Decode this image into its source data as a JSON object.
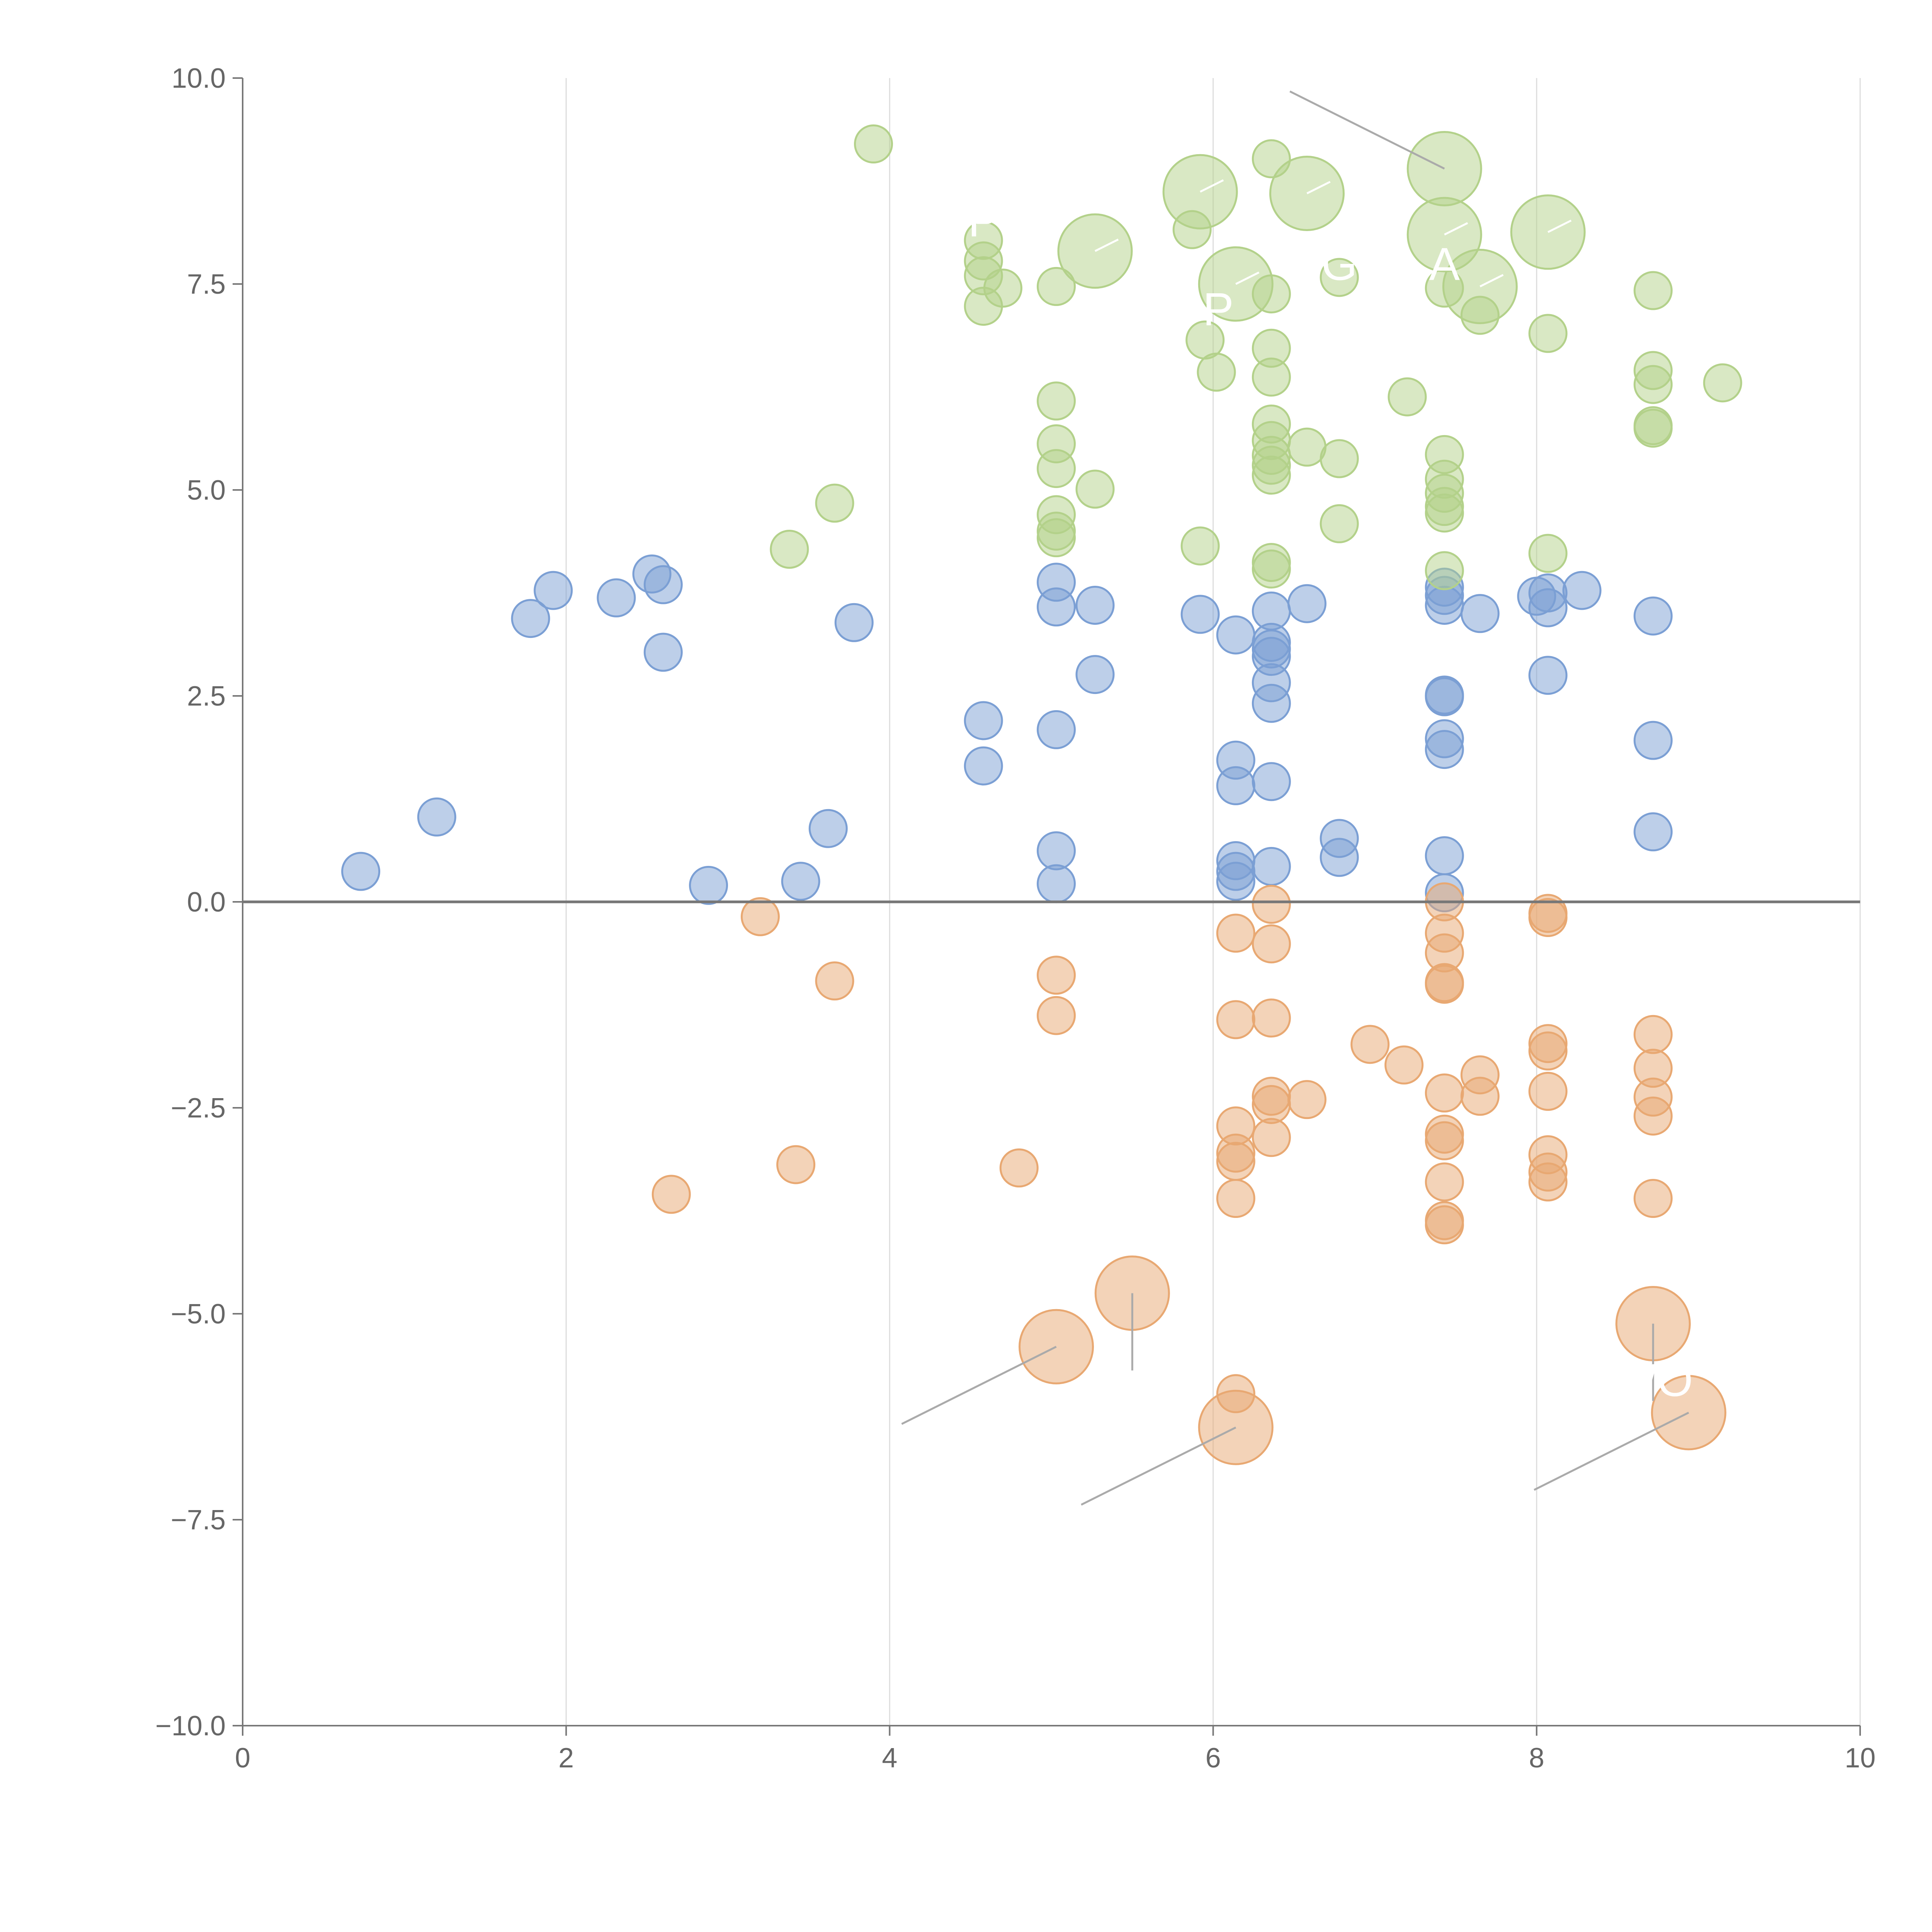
{
  "chart_data": {
    "type": "scatter",
    "title": "",
    "xlabel": "",
    "ylabel": "",
    "xlim": [
      0,
      10
    ],
    "ylim": [
      -10,
      10
    ],
    "xticks": [
      0,
      2,
      4,
      6,
      8,
      10
    ],
    "xtick_labels": [
      "0",
      "2",
      "4",
      "6",
      "8",
      "10"
    ],
    "yticks": [
      -10,
      -7.5,
      -5,
      -2.5,
      0,
      2.5,
      5,
      7.5,
      10
    ],
    "ytick_labels": [
      "−10.0",
      "−7.5",
      "−5.0",
      "−2.5",
      "0.0",
      "2.5",
      "5.0",
      "7.5",
      "10.0"
    ],
    "grid": "vertical",
    "zero_line": true,
    "series": [
      {
        "name": "blue",
        "color": "#7b9fd4",
        "points": [
          [
            0.73,
            0.37
          ],
          [
            1.2,
            1.03
          ],
          [
            1.78,
            3.44
          ],
          [
            1.92,
            3.78
          ],
          [
            2.31,
            3.69
          ],
          [
            2.53,
            3.98
          ],
          [
            2.6,
            3.85
          ],
          [
            2.6,
            3.03
          ],
          [
            2.88,
            0.2
          ],
          [
            3.45,
            0.25
          ],
          [
            3.62,
            0.89
          ],
          [
            3.78,
            3.39
          ],
          [
            4.58,
            2.2
          ],
          [
            4.58,
            1.65
          ],
          [
            5.03,
            3.88
          ],
          [
            5.03,
            3.58
          ],
          [
            5.03,
            2.09
          ],
          [
            5.03,
            0.62
          ],
          [
            5.03,
            0.22
          ],
          [
            5.27,
            3.6
          ],
          [
            5.27,
            2.76
          ],
          [
            5.92,
            3.49
          ],
          [
            6.14,
            3.24
          ],
          [
            6.14,
            1.72
          ],
          [
            6.14,
            1.41
          ],
          [
            6.14,
            0.5
          ],
          [
            6.14,
            0.37
          ],
          [
            6.14,
            0.25
          ],
          [
            6.36,
            3.53
          ],
          [
            6.36,
            3.15
          ],
          [
            6.36,
            3.07
          ],
          [
            6.36,
            2.98
          ],
          [
            6.36,
            2.66
          ],
          [
            6.36,
            2.41
          ],
          [
            6.36,
            1.46
          ],
          [
            6.36,
            0.43
          ],
          [
            6.58,
            3.62
          ],
          [
            6.78,
            0.77
          ],
          [
            6.78,
            0.54
          ],
          [
            7.43,
            3.82
          ],
          [
            7.43,
            3.72
          ],
          [
            7.43,
            3.6
          ],
          [
            7.43,
            2.51
          ],
          [
            7.43,
            2.49
          ],
          [
            7.43,
            1.98
          ],
          [
            7.43,
            1.85
          ],
          [
            7.43,
            0.56
          ],
          [
            7.43,
            0.11
          ],
          [
            7.65,
            3.5
          ],
          [
            8.0,
            3.71
          ],
          [
            8.07,
            3.75
          ],
          [
            8.07,
            3.57
          ],
          [
            8.07,
            2.75
          ],
          [
            8.28,
            3.78
          ],
          [
            8.72,
            3.47
          ],
          [
            8.72,
            1.96
          ],
          [
            8.72,
            0.85
          ]
        ]
      },
      {
        "name": "green",
        "color": "#b3d18a",
        "points": [
          [
            3.38,
            4.28
          ],
          [
            3.66,
            4.84
          ],
          [
            3.9,
            9.2
          ],
          [
            4.58,
            8.03
          ],
          [
            4.58,
            7.78
          ],
          [
            4.58,
            7.6
          ],
          [
            4.58,
            7.23
          ],
          [
            4.7,
            7.45
          ],
          [
            5.03,
            7.47
          ],
          [
            5.03,
            6.08
          ],
          [
            5.03,
            5.56
          ],
          [
            5.03,
            5.26
          ],
          [
            5.03,
            4.7
          ],
          [
            5.03,
            4.5
          ],
          [
            5.03,
            4.42
          ],
          [
            5.27,
            5.01
          ],
          [
            5.87,
            8.16
          ],
          [
            5.92,
            4.32
          ],
          [
            5.95,
            6.82
          ],
          [
            6.02,
            6.43
          ],
          [
            6.36,
            9.02
          ],
          [
            6.36,
            7.38
          ],
          [
            6.36,
            6.72
          ],
          [
            6.36,
            6.37
          ],
          [
            6.36,
            5.8
          ],
          [
            6.36,
            5.6
          ],
          [
            6.36,
            5.42
          ],
          [
            6.36,
            5.3
          ],
          [
            6.36,
            5.18
          ],
          [
            6.36,
            4.12
          ],
          [
            6.36,
            4.04
          ],
          [
            6.58,
            5.52
          ],
          [
            6.78,
            5.38
          ],
          [
            6.78,
            4.59
          ],
          [
            6.78,
            7.58
          ],
          [
            7.2,
            6.13
          ],
          [
            7.43,
            7.45
          ],
          [
            7.43,
            5.43
          ],
          [
            7.43,
            5.13
          ],
          [
            7.43,
            4.96
          ],
          [
            7.43,
            4.8
          ],
          [
            7.43,
            4.72
          ],
          [
            7.43,
            4.02
          ],
          [
            7.65,
            7.12
          ],
          [
            8.07,
            6.9
          ],
          [
            8.07,
            4.23
          ],
          [
            8.72,
            7.42
          ],
          [
            8.72,
            6.45
          ],
          [
            8.72,
            6.28
          ],
          [
            8.72,
            5.78
          ],
          [
            8.72,
            5.75
          ],
          [
            9.15,
            6.3
          ]
        ]
      },
      {
        "name": "orange",
        "color": "#e8a872",
        "points": [
          [
            2.65,
            -3.55
          ],
          [
            3.2,
            -0.18
          ],
          [
            3.42,
            -3.19
          ],
          [
            3.66,
            -0.96
          ],
          [
            4.8,
            -3.23
          ],
          [
            5.03,
            -0.89
          ],
          [
            5.03,
            -1.38
          ],
          [
            6.14,
            -0.38
          ],
          [
            6.14,
            -1.43
          ],
          [
            6.14,
            -2.72
          ],
          [
            6.14,
            -3.05
          ],
          [
            6.14,
            -3.15
          ],
          [
            6.14,
            -3.6
          ],
          [
            6.14,
            -5.97
          ],
          [
            6.36,
            -0.03
          ],
          [
            6.36,
            -0.51
          ],
          [
            6.36,
            -1.41
          ],
          [
            6.36,
            -2.36
          ],
          [
            6.36,
            -2.46
          ],
          [
            6.36,
            -2.86
          ],
          [
            6.58,
            -2.4
          ],
          [
            6.97,
            -1.73
          ],
          [
            7.18,
            -1.98
          ],
          [
            7.43,
            0.0
          ],
          [
            7.43,
            -0.38
          ],
          [
            7.43,
            -0.62
          ],
          [
            7.43,
            -0.98
          ],
          [
            7.43,
            -1.0
          ],
          [
            7.43,
            -2.32
          ],
          [
            7.43,
            -2.82
          ],
          [
            7.43,
            -2.9
          ],
          [
            7.43,
            -3.4
          ],
          [
            7.43,
            -3.87
          ],
          [
            7.43,
            -3.92
          ],
          [
            7.65,
            -2.1
          ],
          [
            7.65,
            -2.36
          ],
          [
            8.07,
            -0.14
          ],
          [
            8.07,
            -0.19
          ],
          [
            8.07,
            -1.72
          ],
          [
            8.07,
            -1.81
          ],
          [
            8.07,
            -2.3
          ],
          [
            8.07,
            -3.07
          ],
          [
            8.07,
            -3.28
          ],
          [
            8.07,
            -3.4
          ],
          [
            8.72,
            -1.61
          ],
          [
            8.72,
            -2.02
          ],
          [
            8.72,
            -2.37
          ],
          [
            8.72,
            -2.6
          ],
          [
            8.72,
            -3.6
          ]
        ]
      }
    ],
    "highlighted": [
      {
        "series": "green",
        "x": 5.92,
        "y": 8.62
      },
      {
        "series": "green",
        "x": 6.58,
        "y": 8.6
      },
      {
        "series": "green",
        "x": 7.43,
        "y": 8.9
      },
      {
        "series": "green",
        "x": 5.27,
        "y": 7.9
      },
      {
        "series": "green",
        "x": 7.43,
        "y": 8.1
      },
      {
        "series": "green",
        "x": 8.07,
        "y": 8.13
      },
      {
        "series": "green",
        "x": 6.14,
        "y": 7.5
      },
      {
        "series": "green",
        "x": 7.65,
        "y": 7.47
      },
      {
        "series": "orange",
        "x": 5.03,
        "y": -5.4
      },
      {
        "series": "orange",
        "x": 5.5,
        "y": -4.75
      },
      {
        "series": "orange",
        "x": 6.14,
        "y": -6.38
      },
      {
        "series": "orange",
        "x": 8.72,
        "y": -5.12
      },
      {
        "series": "orange",
        "x": 8.94,
        "y": -6.2
      }
    ],
    "annotations": [
      {
        "text": "P",
        "x": 4.58,
        "y": 8.08
      },
      {
        "text": "G",
        "x": 6.78,
        "y": 7.55
      },
      {
        "text": "A",
        "x": 7.43,
        "y": 7.55
      },
      {
        "text": "OP",
        "x": 5.92,
        "y": 7.0
      },
      {
        "text": "WO",
        "x": 8.72,
        "y": -6.0
      }
    ]
  }
}
